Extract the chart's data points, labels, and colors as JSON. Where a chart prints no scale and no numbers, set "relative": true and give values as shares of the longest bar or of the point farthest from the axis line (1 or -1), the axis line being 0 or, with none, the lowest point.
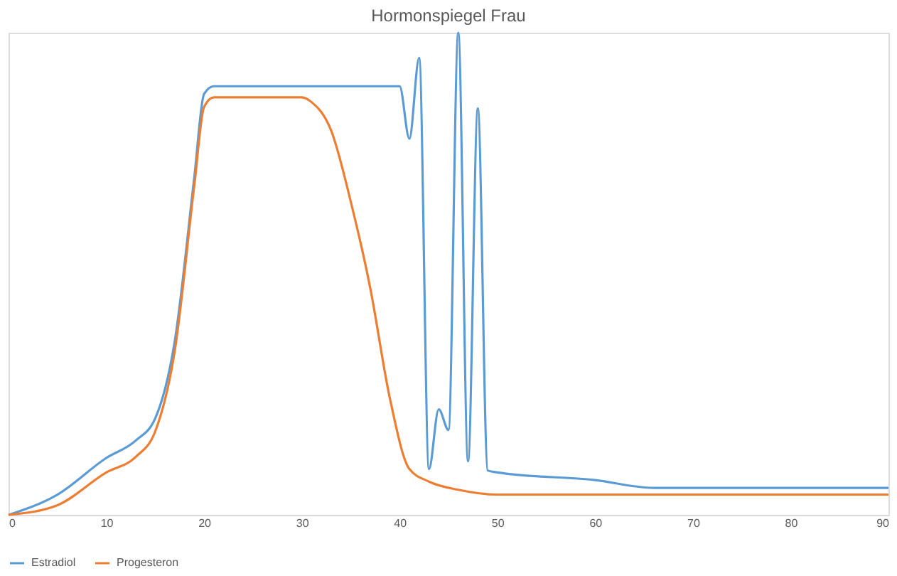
{
  "chart_data": {
    "type": "line",
    "title": "Hormonspiegel Frau",
    "relative": true,
    "xlim": [
      0,
      90
    ],
    "xticks": [
      0,
      10,
      20,
      30,
      40,
      50,
      60,
      70,
      80,
      90
    ],
    "grid": false,
    "legend": "bottom",
    "marker": "none",
    "line_style": "solid",
    "series": [
      {
        "name": "Estradiol",
        "color": "#5b9bd5",
        "x": [
          0,
          5,
          10,
          13,
          15,
          17,
          19,
          20,
          21,
          40,
          41,
          42,
          43,
          44,
          45,
          46,
          47,
          48,
          49,
          50,
          60,
          66,
          90
        ],
        "values": [
          0,
          0.042,
          0.118,
          0.154,
          0.2,
          0.36,
          0.7,
          0.873,
          0.889,
          0.889,
          0.78,
          0.948,
          0.095,
          0.219,
          0.176,
          1,
          0.111,
          0.843,
          0.092,
          0.088,
          0.072,
          0.056,
          0.056
        ]
      },
      {
        "name": "Progesteron",
        "color": "#ed7d31",
        "x": [
          0,
          5,
          10,
          13,
          15,
          17,
          19,
          20,
          21,
          30,
          31,
          33,
          35,
          37,
          39,
          41,
          43,
          46,
          50,
          90
        ],
        "values": [
          0,
          0.02,
          0.088,
          0.12,
          0.173,
          0.34,
          0.683,
          0.846,
          0.866,
          0.866,
          0.856,
          0.797,
          0.65,
          0.47,
          0.242,
          0.095,
          0.069,
          0.052,
          0.042,
          0.042
        ]
      }
    ]
  }
}
